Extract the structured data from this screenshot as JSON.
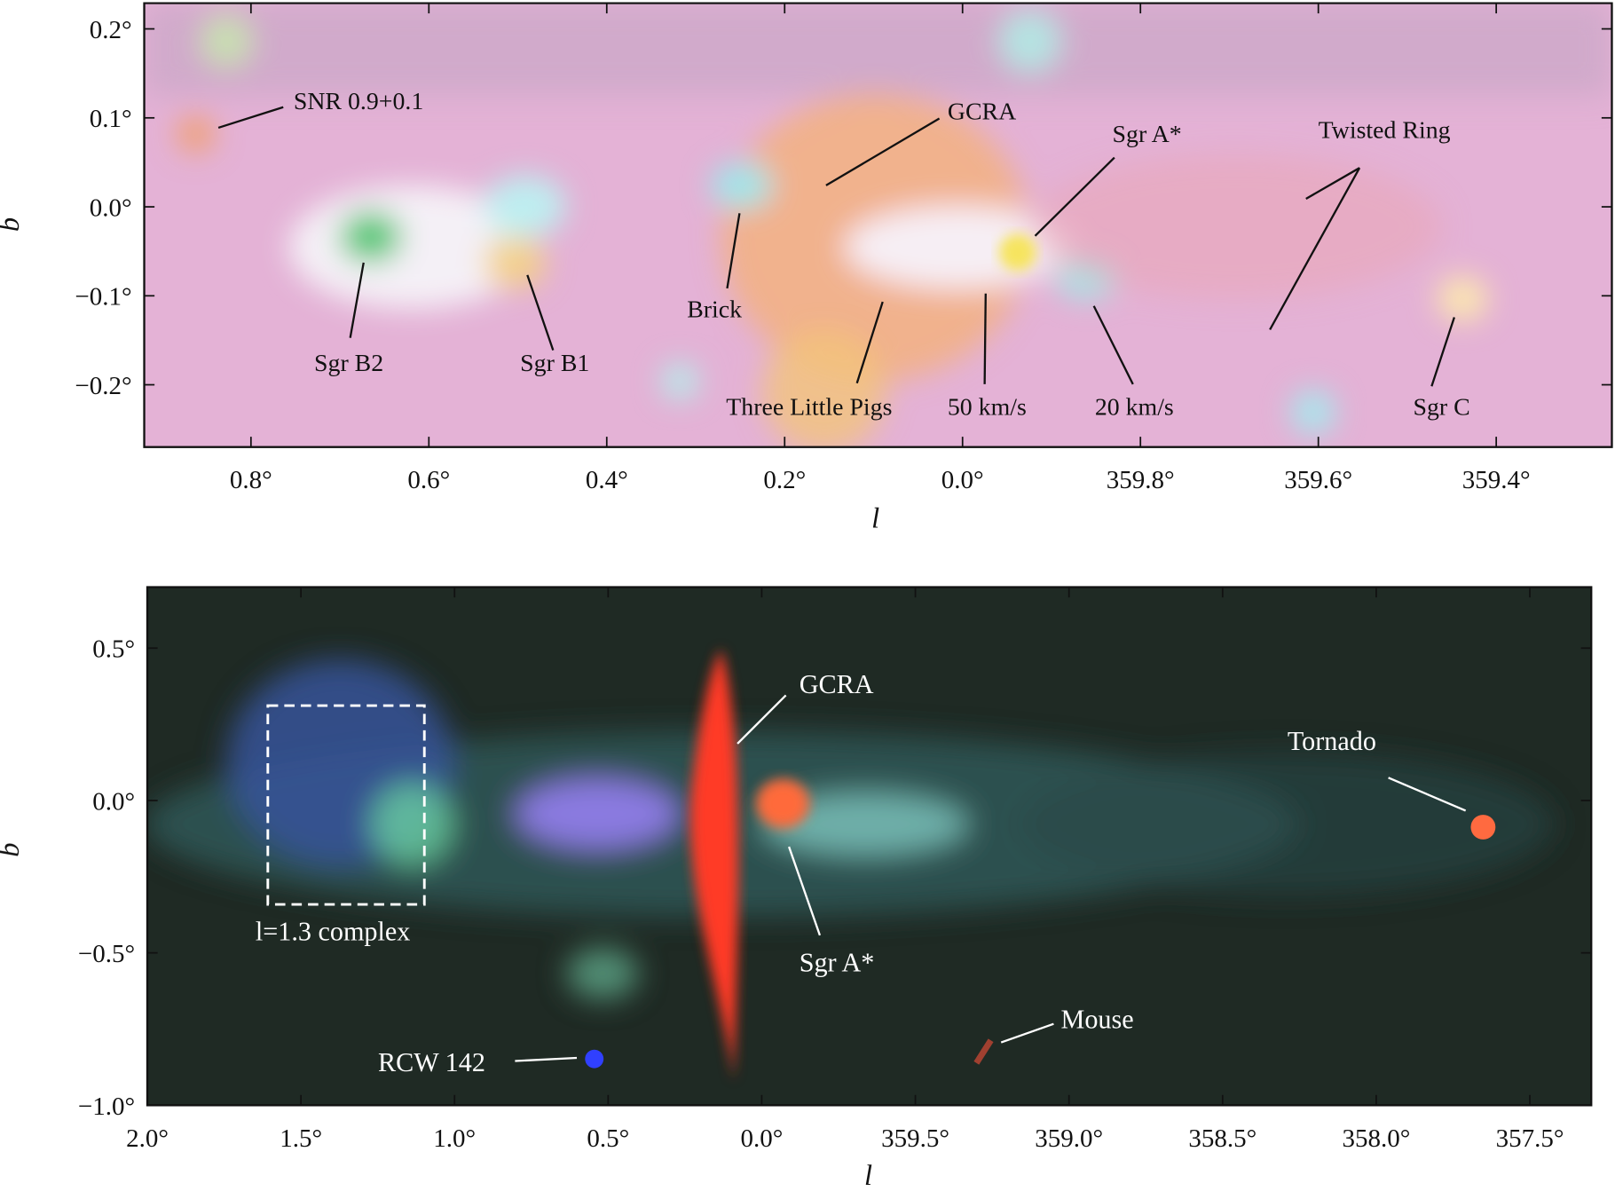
{
  "chart_data": [
    {
      "type": "image",
      "xlabel": "l",
      "ylabel": "b",
      "xlim": [
        0.92,
        359.27
      ],
      "ylim": [
        -0.27,
        0.229
      ],
      "xticks": [
        {
          "value": 0.8,
          "label": "0.8°"
        },
        {
          "value": 0.6,
          "label": "0.6°"
        },
        {
          "value": 0.4,
          "label": "0.4°"
        },
        {
          "value": 0.2,
          "label": "0.2°"
        },
        {
          "value": 0.0,
          "label": "0.0°"
        },
        {
          "value": 359.8,
          "label": "359.8°"
        },
        {
          "value": 359.6,
          "label": "359.6°"
        },
        {
          "value": 359.4,
          "label": "359.4°"
        }
      ],
      "yticks": [
        {
          "value": 0.2,
          "label": "0.2°"
        },
        {
          "value": 0.1,
          "label": "0.1°"
        },
        {
          "value": 0.0,
          "label": "0.0°"
        },
        {
          "value": -0.1,
          "label": "−0.1°"
        },
        {
          "value": -0.2,
          "label": "−0.2°"
        }
      ],
      "annotations": [
        "SNR 0.9+0.1",
        "GCRA",
        "Sgr A*",
        "Twisted Ring",
        "Brick",
        "Sgr B2",
        "Sgr B1",
        "Three Little Pigs",
        "50 km/s",
        "20 km/s",
        "Sgr C"
      ]
    },
    {
      "type": "image",
      "xlabel": "l",
      "ylabel": "b",
      "xlim": [
        2.0,
        357.3
      ],
      "ylim": [
        -1.0,
        0.7
      ],
      "xticks": [
        {
          "value": 2.0,
          "label": "2.0°"
        },
        {
          "value": 1.5,
          "label": "1.5°"
        },
        {
          "value": 1.0,
          "label": "1.0°"
        },
        {
          "value": 0.5,
          "label": "0.5°"
        },
        {
          "value": 0.0,
          "label": "0.0°"
        },
        {
          "value": 359.5,
          "label": "359.5°"
        },
        {
          "value": 359.0,
          "label": "359.0°"
        },
        {
          "value": 358.5,
          "label": "358.5°"
        },
        {
          "value": 358.0,
          "label": "358.0°"
        },
        {
          "value": 357.5,
          "label": "357.5°"
        }
      ],
      "yticks": [
        {
          "value": 0.5,
          "label": "0.5°"
        },
        {
          "value": 0.0,
          "label": "0.0°"
        },
        {
          "value": -0.5,
          "label": "−0.5°"
        },
        {
          "value": -1.0,
          "label": "−1.0°"
        }
      ],
      "annotations": [
        "GCRA",
        "Tornado",
        "l=1.3 complex",
        "Sgr A*",
        "Mouse",
        "RCW 142"
      ]
    }
  ]
}
